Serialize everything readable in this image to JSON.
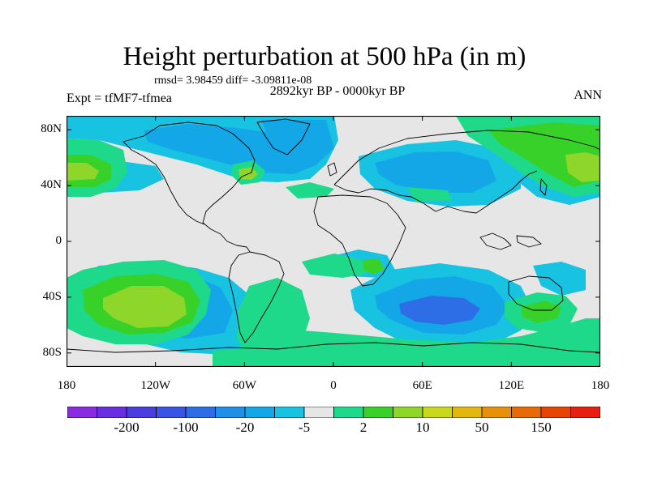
{
  "title": "Height perturbation at 500 hPa (in m)",
  "stats_line": "rmsd= 3.98459 diff= -3.09811e-08",
  "experiment_label": "Expt = tfMF7-tfmea",
  "period_label": "2892kyr BP - 0000kyr BP",
  "season_label": "ANN",
  "map": {
    "projection": "cylindrical equidistant",
    "lon_range": [
      -180,
      180
    ],
    "lat_range": [
      -90,
      90
    ],
    "lat_ticks": [
      {
        "value": 80,
        "label": "80N"
      },
      {
        "value": 40,
        "label": "40N"
      },
      {
        "value": 0,
        "label": "0"
      },
      {
        "value": -40,
        "label": "40S"
      },
      {
        "value": -80,
        "label": "80S"
      }
    ],
    "lon_ticks": [
      {
        "value": -180,
        "label": "180"
      },
      {
        "value": -120,
        "label": "120W"
      },
      {
        "value": -60,
        "label": "60W"
      },
      {
        "value": 0,
        "label": "0"
      },
      {
        "value": 60,
        "label": "60E"
      },
      {
        "value": 120,
        "label": "120E"
      },
      {
        "value": 180,
        "label": "180"
      }
    ],
    "background_color": "#e6e6e6",
    "coastline_color": "#000000"
  },
  "colorbar": {
    "colors": [
      "#8a2be2",
      "#6a2ee0",
      "#4b3ee0",
      "#3a55e6",
      "#2d6ee6",
      "#1f8fe8",
      "#14a7e8",
      "#18c3e2",
      "#e6e6e6",
      "#1fd98a",
      "#38d12a",
      "#8ed62a",
      "#c9d81a",
      "#e2b80e",
      "#e8900a",
      "#e86a06",
      "#e84404",
      "#e81e10"
    ],
    "labels": [
      {
        "after_segment": 1,
        "text": "-200"
      },
      {
        "after_segment": 3,
        "text": "-100"
      },
      {
        "after_segment": 5,
        "text": "-20"
      },
      {
        "after_segment": 7,
        "text": "-5"
      },
      {
        "after_segment": 9,
        "text": "2"
      },
      {
        "after_segment": 11,
        "text": "10"
      },
      {
        "after_segment": 13,
        "text": "50"
      },
      {
        "after_segment": 15,
        "text": "150"
      }
    ]
  }
}
